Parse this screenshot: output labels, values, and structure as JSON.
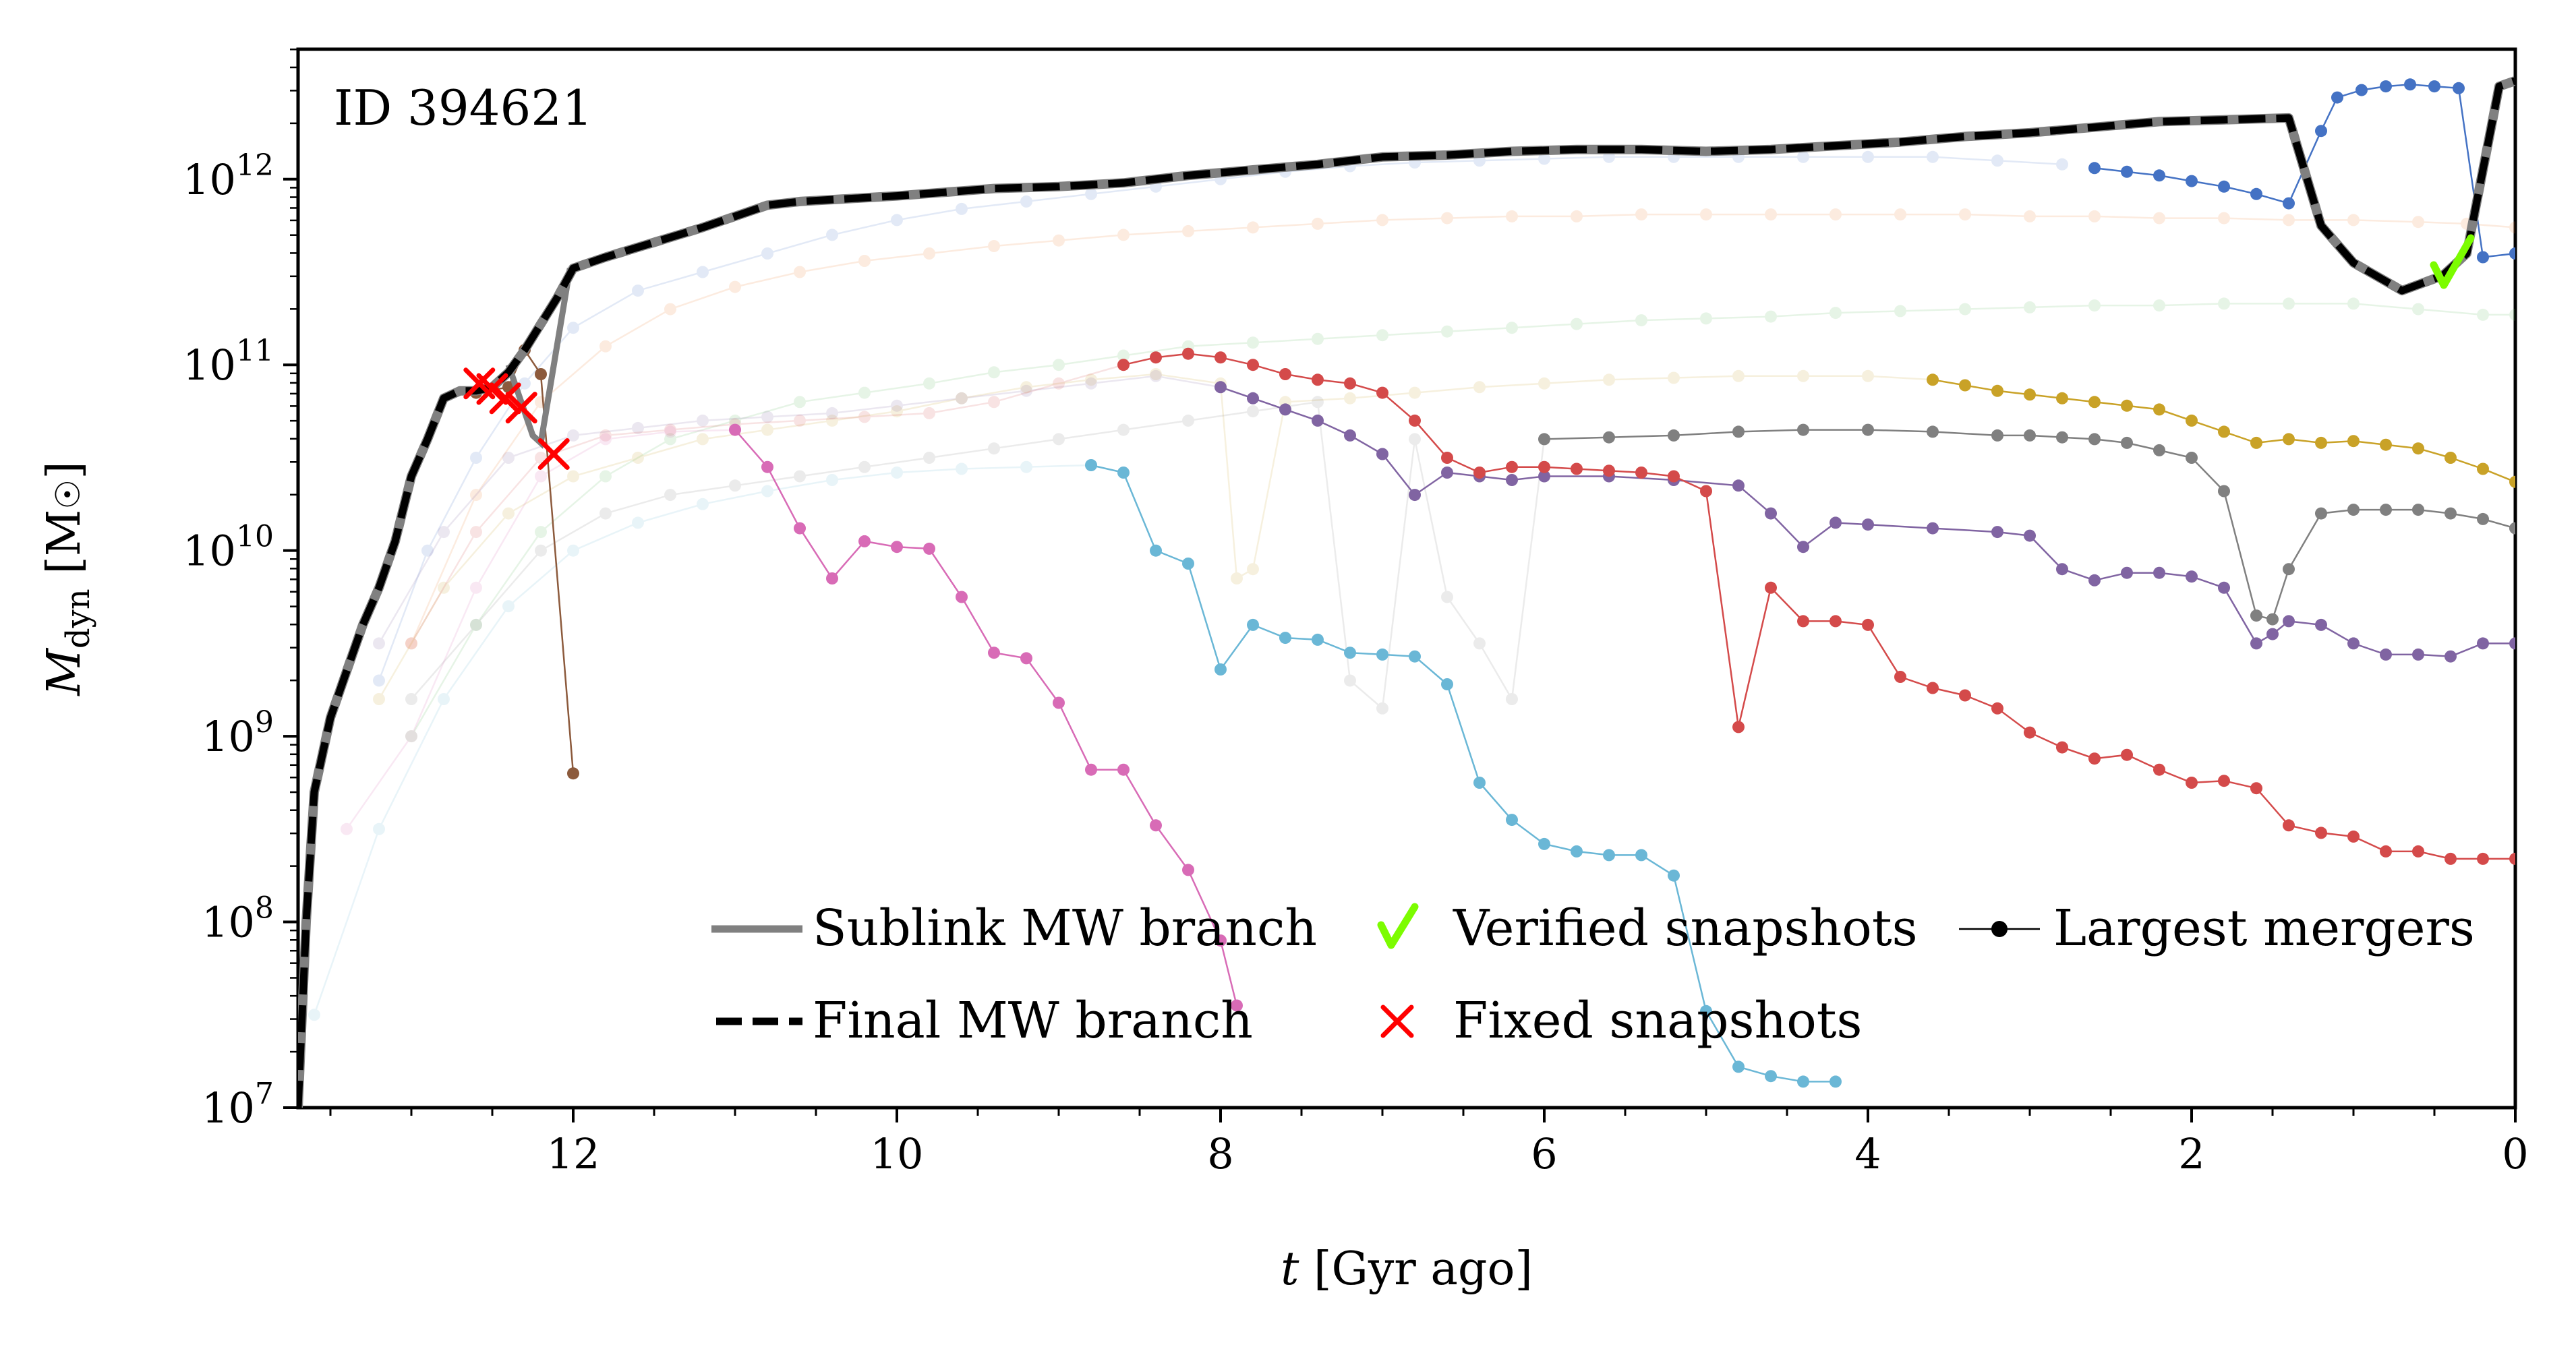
{
  "chart_data": {
    "type": "line",
    "title": "",
    "annotation": "ID 394621",
    "xlabel": {
      "italic": "t",
      "rest": " [Gyr ago]"
    },
    "ylabel": {
      "main": "M",
      "sub": "dyn",
      "rest": " [M",
      "sun": "☉",
      "close": "]"
    },
    "xlim": [
      13.7,
      0
    ],
    "ylim_log10": [
      7,
      12.7
    ],
    "x_ticks": [
      {
        "value": 12,
        "label": "12"
      },
      {
        "value": 10,
        "label": "10"
      },
      {
        "value": 8,
        "label": "8"
      },
      {
        "value": 6,
        "label": "6"
      },
      {
        "value": 4,
        "label": "4"
      },
      {
        "value": 2,
        "label": "2"
      },
      {
        "value": 0,
        "label": "0"
      }
    ],
    "y_ticks": [
      {
        "exp": 7,
        "base": "10",
        "sup": "7"
      },
      {
        "exp": 8,
        "base": "10",
        "sup": "8"
      },
      {
        "exp": 9,
        "base": "10",
        "sup": "9"
      },
      {
        "exp": 10,
        "base": "10",
        "sup": "10"
      },
      {
        "exp": 11,
        "base": "10",
        "sup": "11"
      },
      {
        "exp": 12,
        "base": "10",
        "sup": "12"
      }
    ],
    "legend": {
      "placement": "lower-right",
      "entries": [
        {
          "label": "Sublink MW branch",
          "kind": "solid-gray"
        },
        {
          "label": "Verified snapshots",
          "kind": "check-green"
        },
        {
          "label": "Largest mergers",
          "kind": "line-dot"
        },
        {
          "label": "Final MW branch",
          "kind": "dashed-black"
        },
        {
          "label": "Fixed snapshots",
          "kind": "x-red"
        }
      ]
    },
    "colors": {
      "sublink": "#808080",
      "final": "#000000",
      "verified": "#7cfc00",
      "fixed": "#ff0000"
    },
    "main_branch": {
      "t": [
        13.7,
        13.65,
        13.6,
        13.5,
        13.4,
        13.3,
        13.2,
        13.1,
        13.0,
        12.9,
        12.8,
        12.7,
        12.6,
        12.5,
        12.4,
        12.3,
        12.2,
        12.1,
        12.0,
        11.8,
        11.5,
        11.2,
        11.0,
        10.8,
        10.6,
        10.4,
        10.2,
        10.0,
        9.7,
        9.4,
        9.0,
        8.6,
        8.2,
        7.8,
        7.4,
        7.0,
        6.6,
        6.2,
        5.8,
        5.4,
        5.0,
        4.6,
        4.2,
        3.8,
        3.4,
        3.0,
        2.6,
        2.2,
        1.8,
        1.4,
        1.2,
        1.0,
        0.7,
        0.45,
        0.3,
        0.1,
        0.0
      ],
      "log": [
        7.0,
        8.0,
        8.7,
        9.1,
        9.35,
        9.6,
        9.8,
        10.05,
        10.4,
        10.6,
        10.82,
        10.86,
        10.86,
        10.88,
        10.96,
        11.08,
        11.22,
        11.36,
        11.52,
        11.58,
        11.66,
        11.74,
        11.8,
        11.86,
        11.88,
        11.89,
        11.9,
        11.91,
        11.93,
        11.95,
        11.96,
        11.98,
        12.02,
        12.05,
        12.08,
        12.12,
        12.13,
        12.15,
        12.16,
        12.16,
        12.15,
        12.16,
        12.18,
        12.2,
        12.23,
        12.25,
        12.28,
        12.31,
        12.32,
        12.33,
        11.75,
        11.55,
        11.4,
        11.48,
        11.6,
        12.5,
        12.53
      ],
      "sublink_t": [
        12.4,
        12.25,
        12.2,
        12.02
      ],
      "sublink_log": [
        11.0,
        10.62,
        10.58,
        11.52
      ]
    },
    "verified_snapshots": [
      0.4
    ],
    "fixed_snapshots": [
      {
        "t": 12.58,
        "log": 10.9
      },
      {
        "t": 12.5,
        "log": 10.87
      },
      {
        "t": 12.42,
        "log": 10.82
      },
      {
        "t": 12.32,
        "log": 10.77
      },
      {
        "t": 12.12,
        "log": 10.52
      }
    ],
    "series": [
      {
        "name": "blue",
        "color": "#4472c4",
        "faded": {
          "t": [
            13.2,
            12.9,
            12.6,
            12.3,
            12.0,
            11.6,
            11.2,
            10.8,
            10.4,
            10.0,
            9.6,
            9.2,
            8.8,
            8.4,
            8.0,
            7.6,
            7.2,
            6.8,
            6.4,
            6.0,
            5.6,
            5.2,
            4.8,
            4.4,
            4.0,
            3.6,
            3.2,
            2.8
          ],
          "log": [
            9.3,
            10.0,
            10.5,
            10.9,
            11.2,
            11.4,
            11.5,
            11.6,
            11.7,
            11.78,
            11.84,
            11.88,
            11.92,
            11.96,
            12.0,
            12.04,
            12.07,
            12.09,
            12.1,
            12.11,
            12.12,
            12.12,
            12.12,
            12.12,
            12.12,
            12.12,
            12.1,
            12.08
          ]
        },
        "solid": {
          "t": [
            2.6,
            2.4,
            2.2,
            2.0,
            1.8,
            1.6,
            1.4,
            1.2,
            1.1,
            0.95,
            0.8,
            0.65,
            0.5,
            0.35,
            0.2,
            0.0
          ],
          "log": [
            12.06,
            12.04,
            12.02,
            11.99,
            11.96,
            11.92,
            11.87,
            12.26,
            12.44,
            12.48,
            12.5,
            12.51,
            12.5,
            12.49,
            11.58,
            11.6
          ]
        }
      },
      {
        "name": "orange",
        "color": "#ed7d31",
        "faded": {
          "t": [
            13.0,
            12.6,
            12.2,
            11.8,
            11.4,
            11.0,
            10.6,
            10.2,
            9.8,
            9.4,
            9.0,
            8.6,
            8.2,
            7.8,
            7.4,
            7.0,
            6.6,
            6.2,
            5.8,
            5.4,
            5.0,
            4.6,
            4.2,
            3.8,
            3.4,
            3.0,
            2.6,
            2.2,
            1.8,
            1.4,
            1.0,
            0.6,
            0.3,
            0.0
          ],
          "log": [
            9.5,
            10.3,
            10.8,
            11.1,
            11.3,
            11.42,
            11.5,
            11.56,
            11.6,
            11.64,
            11.67,
            11.7,
            11.72,
            11.74,
            11.76,
            11.78,
            11.79,
            11.8,
            11.8,
            11.81,
            11.81,
            11.81,
            11.81,
            11.81,
            11.81,
            11.8,
            11.8,
            11.79,
            11.79,
            11.78,
            11.78,
            11.77,
            11.76,
            11.74
          ]
        }
      },
      {
        "name": "green",
        "color": "#5cb85c",
        "faded": {
          "t": [
            13.0,
            12.6,
            12.2,
            11.8,
            11.4,
            11.0,
            10.6,
            10.2,
            9.8,
            9.4,
            9.0,
            8.6,
            8.2,
            7.8,
            7.4,
            7.0,
            6.6,
            6.2,
            5.8,
            5.4,
            5.0,
            4.6,
            4.2,
            3.8,
            3.4,
            3.0,
            2.6,
            2.2,
            1.8,
            1.4,
            1.0,
            0.6,
            0.2,
            0.0
          ],
          "log": [
            9.0,
            9.6,
            10.1,
            10.4,
            10.6,
            10.7,
            10.8,
            10.85,
            10.9,
            10.96,
            11.0,
            11.05,
            11.1,
            11.12,
            11.14,
            11.16,
            11.18,
            11.2,
            11.22,
            11.24,
            11.25,
            11.26,
            11.28,
            11.29,
            11.3,
            11.31,
            11.32,
            11.32,
            11.33,
            11.33,
            11.33,
            11.3,
            11.27,
            11.27
          ]
        }
      },
      {
        "name": "gold",
        "color": "#c9a227",
        "faded": {
          "t": [
            13.2,
            12.8,
            12.4,
            12.0,
            11.6,
            11.2,
            10.8,
            10.4,
            10.0,
            9.6,
            9.2,
            8.8,
            8.4,
            8.0,
            7.9,
            7.8,
            7.6,
            7.2,
            6.8,
            6.4,
            6.0,
            5.6,
            5.2,
            4.8,
            4.4,
            4.0,
            3.6
          ],
          "log": [
            9.2,
            9.8,
            10.2,
            10.4,
            10.5,
            10.6,
            10.65,
            10.7,
            10.75,
            10.82,
            10.88,
            10.92,
            10.95,
            10.9,
            9.85,
            9.9,
            10.8,
            10.82,
            10.85,
            10.88,
            10.9,
            10.92,
            10.93,
            10.94,
            10.94,
            10.94,
            10.92
          ]
        },
        "solid": {
          "t": [
            3.6,
            3.4,
            3.2,
            3.0,
            2.8,
            2.6,
            2.4,
            2.2,
            2.0,
            1.8,
            1.6,
            1.4,
            1.2,
            1.0,
            0.8,
            0.6,
            0.4,
            0.2,
            0.0
          ],
          "log": [
            10.92,
            10.89,
            10.86,
            10.84,
            10.82,
            10.8,
            10.78,
            10.76,
            10.7,
            10.64,
            10.58,
            10.6,
            10.58,
            10.59,
            10.57,
            10.55,
            10.5,
            10.44,
            10.37
          ]
        }
      },
      {
        "name": "gray",
        "color": "#808080",
        "faded": {
          "t": [
            13.0,
            12.6,
            12.2,
            11.8,
            11.4,
            11.0,
            10.6,
            10.2,
            9.8,
            9.4,
            9.0,
            8.6,
            8.2,
            7.8,
            7.4,
            7.2,
            7.0,
            6.8,
            6.6,
            6.4,
            6.2,
            6.0
          ],
          "log": [
            9.2,
            9.6,
            10.0,
            10.2,
            10.3,
            10.35,
            10.4,
            10.45,
            10.5,
            10.55,
            10.6,
            10.65,
            10.7,
            10.75,
            10.8,
            9.3,
            9.15,
            10.6,
            9.75,
            9.5,
            9.2,
            10.6
          ]
        },
        "solid": {
          "t": [
            6.0,
            5.6,
            5.2,
            4.8,
            4.4,
            4.0,
            3.6,
            3.2,
            3.0,
            2.8,
            2.6,
            2.4,
            2.2,
            2.0,
            1.8,
            1.6,
            1.5,
            1.4,
            1.2,
            1.0,
            0.8,
            0.6,
            0.4,
            0.2,
            0.0
          ],
          "log": [
            10.6,
            10.61,
            10.62,
            10.64,
            10.65,
            10.65,
            10.64,
            10.62,
            10.62,
            10.61,
            10.6,
            10.58,
            10.54,
            10.5,
            10.32,
            9.65,
            9.63,
            9.9,
            10.2,
            10.22,
            10.22,
            10.22,
            10.2,
            10.17,
            10.12
          ]
        }
      },
      {
        "name": "purple",
        "color": "#8064a2",
        "faded": {
          "t": [
            13.2,
            12.8,
            12.4,
            12.0,
            11.6,
            11.2,
            10.8,
            10.4,
            10.0,
            9.6,
            9.2,
            8.8,
            8.4,
            8.0
          ],
          "log": [
            9.5,
            10.1,
            10.5,
            10.62,
            10.66,
            10.7,
            10.72,
            10.74,
            10.78,
            10.82,
            10.86,
            10.9,
            10.94,
            10.88
          ]
        },
        "solid": {
          "t": [
            8.0,
            7.8,
            7.6,
            7.4,
            7.2,
            7.0,
            6.8,
            6.6,
            6.4,
            6.2,
            6.0,
            5.6,
            5.2,
            4.8,
            4.6,
            4.4,
            4.2,
            4.0,
            3.6,
            3.2,
            3.0,
            2.8,
            2.6,
            2.4,
            2.2,
            2.0,
            1.8,
            1.6,
            1.5,
            1.4,
            1.2,
            1.0,
            0.8,
            0.6,
            0.4,
            0.2,
            0.0
          ],
          "log": [
            10.88,
            10.82,
            10.76,
            10.7,
            10.62,
            10.52,
            10.3,
            10.42,
            10.4,
            10.38,
            10.4,
            10.4,
            10.38,
            10.35,
            10.2,
            10.02,
            10.15,
            10.14,
            10.12,
            10.1,
            10.08,
            9.9,
            9.84,
            9.88,
            9.88,
            9.86,
            9.8,
            9.5,
            9.55,
            9.62,
            9.6,
            9.5,
            9.44,
            9.44,
            9.43,
            9.5,
            9.5
          ]
        }
      },
      {
        "name": "red",
        "color": "#d44a4a",
        "faded": {
          "t": [
            13.0,
            12.6,
            12.2,
            11.8,
            11.4,
            11.0,
            10.6,
            10.2,
            9.8,
            9.4,
            9.0,
            8.6
          ],
          "log": [
            9.5,
            10.1,
            10.5,
            10.62,
            10.65,
            10.68,
            10.7,
            10.72,
            10.74,
            10.8,
            10.9,
            11.0
          ]
        },
        "solid": {
          "t": [
            8.6,
            8.4,
            8.2,
            8.0,
            7.8,
            7.6,
            7.4,
            7.2,
            7.0,
            6.8,
            6.6,
            6.4,
            6.2,
            6.0,
            5.8,
            5.6,
            5.4,
            5.2,
            5.0,
            4.8,
            4.6,
            4.4,
            4.2,
            4.0,
            3.8,
            3.6,
            3.4,
            3.2,
            3.0,
            2.8,
            2.6,
            2.4,
            2.2,
            2.0,
            1.8,
            1.6,
            1.4,
            1.2,
            1.0,
            0.8,
            0.6,
            0.4,
            0.2,
            0.0
          ],
          "log": [
            11.0,
            11.04,
            11.06,
            11.04,
            11.0,
            10.95,
            10.92,
            10.9,
            10.85,
            10.7,
            10.5,
            10.42,
            10.45,
            10.45,
            10.44,
            10.43,
            10.42,
            10.4,
            10.32,
            9.05,
            9.8,
            9.62,
            9.62,
            9.6,
            9.32,
            9.26,
            9.22,
            9.15,
            9.02,
            8.94,
            8.88,
            8.9,
            8.82,
            8.75,
            8.76,
            8.72,
            8.52,
            8.48,
            8.46,
            8.38,
            8.38,
            8.34,
            8.34,
            8.34
          ]
        }
      },
      {
        "name": "cyan",
        "color": "#6ab7d6",
        "faded": {
          "t": [
            13.6,
            13.2,
            12.8,
            12.4,
            12.0,
            11.6,
            11.2,
            10.8,
            10.4,
            10.0,
            9.6,
            9.2,
            8.8
          ],
          "log": [
            7.5,
            8.5,
            9.2,
            9.7,
            10.0,
            10.15,
            10.25,
            10.32,
            10.38,
            10.42,
            10.44,
            10.45,
            10.46
          ]
        },
        "solid": {
          "t": [
            8.8,
            8.6,
            8.4,
            8.2,
            8.0,
            7.8,
            7.6,
            7.4,
            7.2,
            7.0,
            6.8,
            6.6,
            6.4,
            6.2,
            6.0,
            5.8,
            5.6,
            5.4,
            5.2,
            5.0,
            4.8,
            4.6,
            4.4,
            4.2
          ],
          "log": [
            10.46,
            10.42,
            10.0,
            9.93,
            9.36,
            9.6,
            9.53,
            9.52,
            9.45,
            9.44,
            9.43,
            9.28,
            8.75,
            8.55,
            8.42,
            8.38,
            8.36,
            8.36,
            8.25,
            7.52,
            7.22,
            7.17,
            7.14,
            7.14
          ]
        }
      },
      {
        "name": "pink",
        "color": "#d86bb6",
        "faded": {
          "t": [
            13.4,
            13.0,
            12.6,
            12.2,
            11.8,
            11.4,
            11.0
          ],
          "log": [
            8.5,
            9.0,
            9.8,
            10.4,
            10.6,
            10.64,
            10.65
          ]
        },
        "solid": {
          "t": [
            11.0,
            10.8,
            10.6,
            10.4,
            10.2,
            10.0,
            9.8,
            9.6,
            9.4,
            9.2,
            9.0,
            8.8,
            8.6,
            8.4,
            8.2,
            8.0,
            7.9
          ],
          "log": [
            10.65,
            10.45,
            10.12,
            9.85,
            10.05,
            10.02,
            10.01,
            9.75,
            9.45,
            9.42,
            9.18,
            8.82,
            8.82,
            8.52,
            8.28,
            7.9,
            7.55
          ]
        }
      },
      {
        "name": "brown",
        "color": "#8c5a3c",
        "solid": {
          "t": [
            12.6,
            12.4,
            12.3,
            12.2,
            12.0
          ],
          "log": [
            10.85,
            10.88,
            11.08,
            10.95,
            8.8
          ]
        }
      }
    ]
  }
}
